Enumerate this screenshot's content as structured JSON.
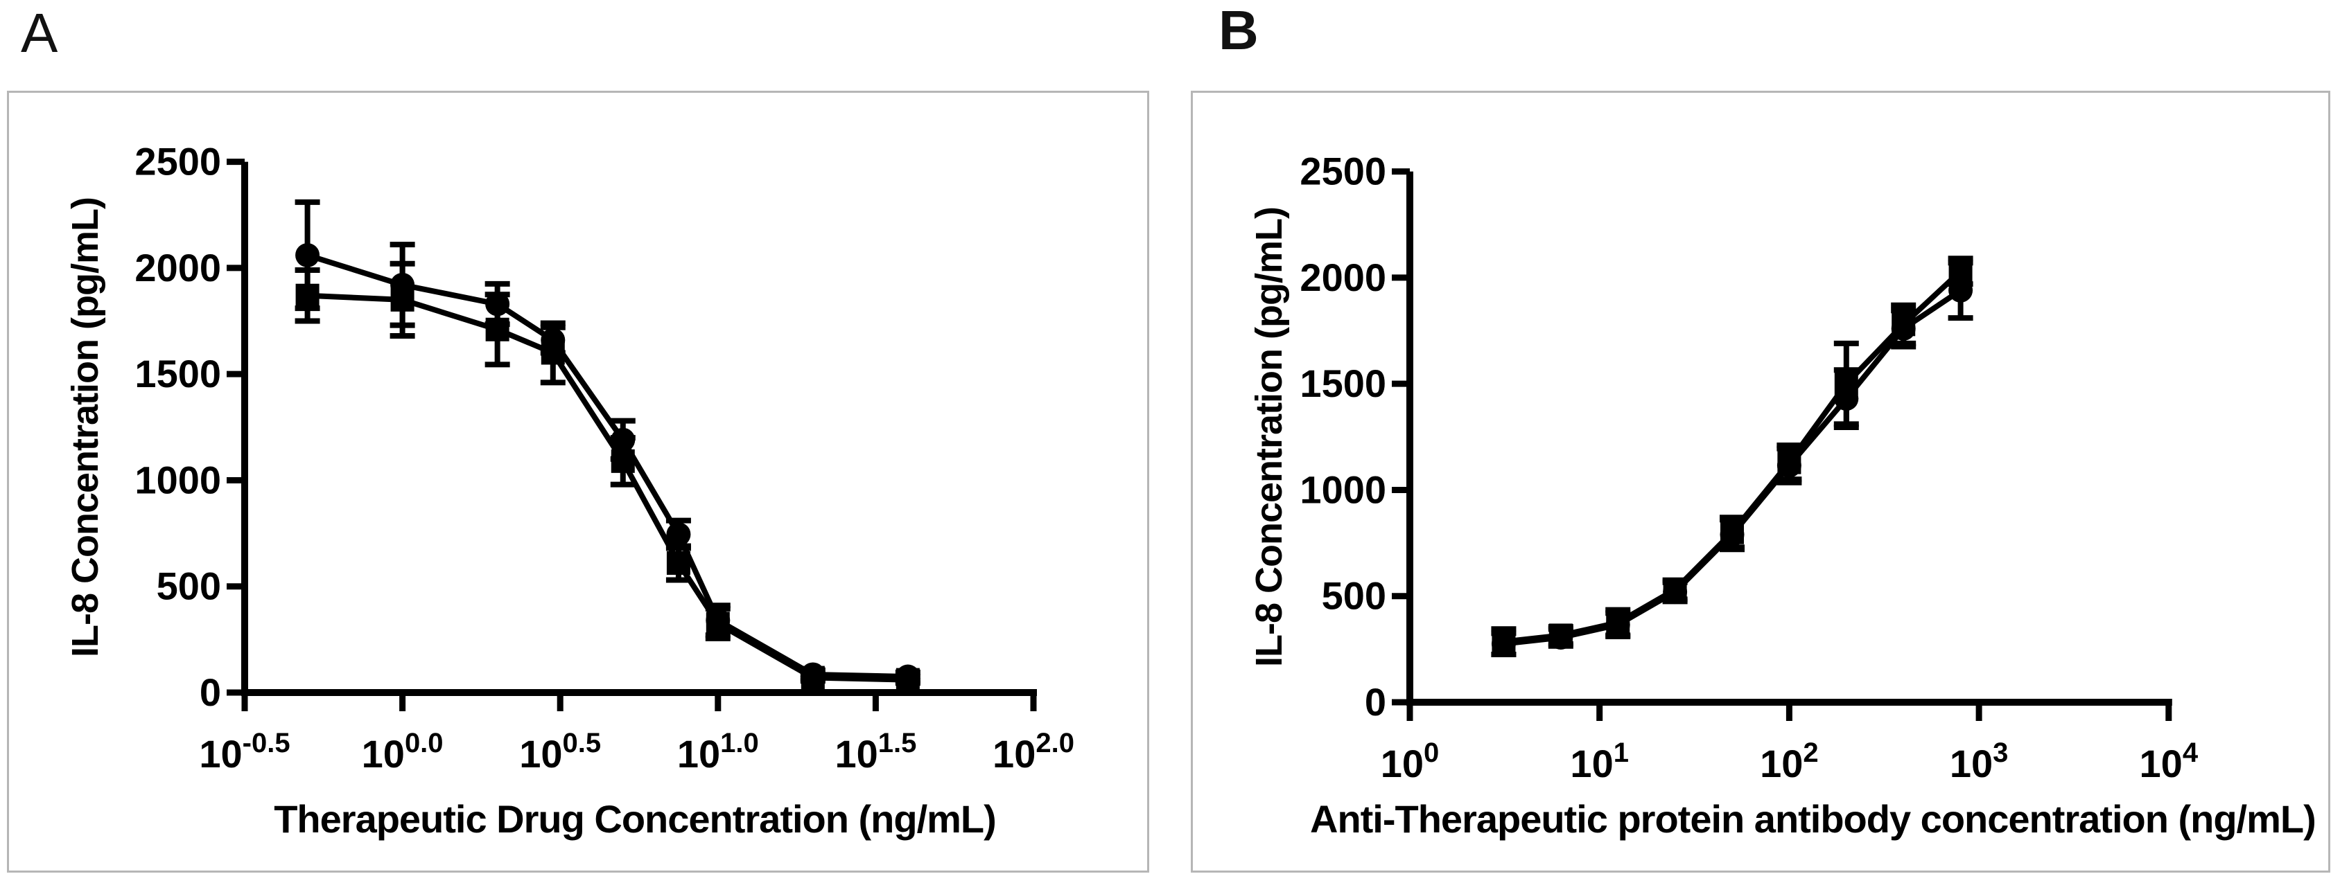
{
  "figure": {
    "panel_a_label": "A",
    "panel_b_label": "B"
  },
  "chart_data": [
    {
      "id": "A",
      "type": "line",
      "title": "",
      "xlabel": "Therapeutic Drug Concentration (ng/mL)",
      "ylabel": "IL-8 Concentration (pg/mL)",
      "x_scale": "log10",
      "xlim_log10": [
        -0.5,
        2.0
      ],
      "ylim": [
        0,
        2500
      ],
      "grid": false,
      "legend": "none",
      "y_ticks": [
        0,
        500,
        1000,
        1500,
        2000,
        2500
      ],
      "x_ticks": [
        {
          "log": -0.5,
          "base": "10",
          "exp": "-0.5"
        },
        {
          "log": 0.0,
          "base": "10",
          "exp": "0.0"
        },
        {
          "log": 0.5,
          "base": "10",
          "exp": "0.5"
        },
        {
          "log": 1.0,
          "base": "10",
          "exp": "1.0"
        },
        {
          "log": 1.5,
          "base": "10",
          "exp": "1.5"
        },
        {
          "log": 2.0,
          "base": "10",
          "exp": "2.0"
        }
      ],
      "series": [
        {
          "name": "circle-series",
          "marker": "circle",
          "x_ng_ml": [
            0.5,
            1,
            2,
            3,
            5,
            7.5,
            10,
            20,
            40
          ],
          "y_pg_ml": [
            2060,
            1920,
            1830,
            1660,
            1190,
            745,
            340,
            85,
            75
          ],
          "y_err": [
            250,
            190,
            95,
            60,
            90,
            65,
            70,
            20,
            20
          ]
        },
        {
          "name": "square-series",
          "marker": "square",
          "x_ng_ml": [
            0.5,
            1,
            2,
            3,
            5,
            7.5,
            10,
            20,
            40
          ],
          "y_pg_ml": [
            1870,
            1850,
            1710,
            1600,
            1090,
            610,
            325,
            70,
            60
          ],
          "y_err": [
            120,
            170,
            165,
            140,
            110,
            80,
            70,
            15,
            15
          ]
        }
      ]
    },
    {
      "id": "B",
      "type": "line",
      "title": "",
      "xlabel": "Anti-Therapeutic protein antibody concentration (ng/mL)",
      "ylabel": "IL-8 Concentration (pg/mL)",
      "x_scale": "log10",
      "xlim_log10": [
        0,
        4
      ],
      "ylim": [
        0,
        2500
      ],
      "grid": false,
      "legend": "none",
      "y_ticks": [
        0,
        500,
        1000,
        1500,
        2000,
        2500
      ],
      "x_ticks": [
        {
          "log": 0,
          "base": "10",
          "exp": "0"
        },
        {
          "log": 1,
          "base": "10",
          "exp": "1"
        },
        {
          "log": 2,
          "base": "10",
          "exp": "2"
        },
        {
          "log": 3,
          "base": "10",
          "exp": "3"
        },
        {
          "log": 4,
          "base": "10",
          "exp": "4"
        }
      ],
      "series": [
        {
          "name": "circle-series",
          "marker": "circle",
          "x_ng_ml": [
            3.125,
            6.25,
            12.5,
            25,
            50,
            100,
            200,
            400,
            800
          ],
          "y_pg_ml": [
            275,
            305,
            365,
            520,
            790,
            1115,
            1430,
            1760,
            1940
          ],
          "y_err": [
            50,
            40,
            55,
            45,
            70,
            80,
            135,
            85,
            130
          ]
        },
        {
          "name": "square-series",
          "marker": "square",
          "x_ng_ml": [
            3.125,
            6.25,
            12.5,
            25,
            50,
            100,
            200,
            400,
            800
          ],
          "y_pg_ml": [
            285,
            315,
            375,
            530,
            800,
            1130,
            1500,
            1780,
            2030
          ],
          "y_err": [
            60,
            40,
            60,
            45,
            70,
            80,
            190,
            90,
            60
          ]
        }
      ]
    }
  ],
  "style": {
    "series_color": "#000000",
    "panel_border_color": "#b6b6b6",
    "background_color": "#ffffff"
  }
}
